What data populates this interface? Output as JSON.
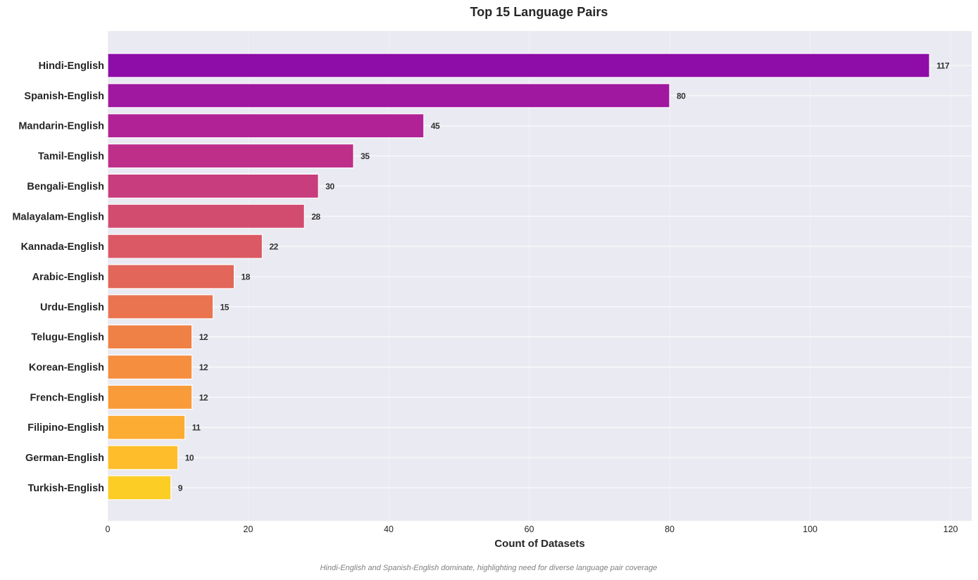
{
  "chart_data": {
    "type": "bar",
    "orientation": "horizontal",
    "title": "Top 15 Language Pairs",
    "xlabel": "Count of Datasets",
    "ylabel": "",
    "xlim": [
      0,
      123
    ],
    "xticks": [
      0,
      20,
      40,
      60,
      80,
      100,
      120
    ],
    "grid": true,
    "categories": [
      "Hindi-English",
      "Spanish-English",
      "Mandarin-English",
      "Tamil-English",
      "Bengali-English",
      "Malayalam-English",
      "Kannada-English",
      "Arabic-English",
      "Urdu-English",
      "Telugu-English",
      "Korean-English",
      "French-English",
      "Filipino-English",
      "German-English",
      "Turkish-English"
    ],
    "values": [
      117,
      80,
      45,
      35,
      30,
      28,
      22,
      18,
      15,
      12,
      12,
      12,
      11,
      10,
      9
    ],
    "colors": [
      "#8e0ca7",
      "#a0189f",
      "#b02296",
      "#be2f8a",
      "#c83d7d",
      "#d24c70",
      "#da5964",
      "#e26659",
      "#e9744f",
      "#ef8146",
      "#f58e3f",
      "#f99b39",
      "#fcac32",
      "#febe2b",
      "#fcce25"
    ],
    "caption": "Hindi-English and Spanish-English dominate, highlighting need for diverse language pair coverage"
  },
  "theme": {
    "plot_background": "#eaeaf2",
    "grid_color": "#ffffff",
    "bar_edge": "#ffffff"
  }
}
